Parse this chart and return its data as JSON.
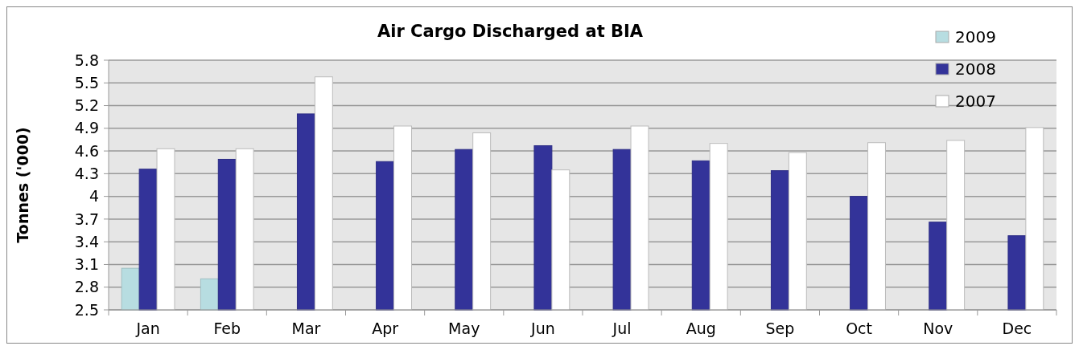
{
  "chart_data": {
    "type": "bar",
    "title": "Air Cargo Discharged at BIA",
    "ylabel": "Tonnes ('000)",
    "categories": [
      "Jan",
      "Feb",
      "Mar",
      "Apr",
      "May",
      "Jun",
      "Jul",
      "Aug",
      "Sep",
      "Oct",
      "Nov",
      "Dec"
    ],
    "series": [
      {
        "name": "2009",
        "color": "#b7dde1",
        "values": [
          3.05,
          2.91,
          null,
          null,
          null,
          null,
          null,
          null,
          null,
          null,
          null,
          null
        ]
      },
      {
        "name": "2008",
        "color": "#333399",
        "values": [
          4.36,
          4.49,
          5.09,
          4.46,
          4.62,
          4.67,
          4.62,
          4.47,
          4.34,
          4.0,
          3.66,
          3.48
        ]
      },
      {
        "name": "2007",
        "color": "#ffffff",
        "values": [
          4.63,
          4.63,
          5.58,
          4.93,
          4.84,
          4.35,
          4.93,
          4.7,
          4.58,
          4.71,
          4.74,
          4.91
        ]
      }
    ],
    "ylim": [
      2.5,
      5.8
    ],
    "yticks": [
      2.5,
      2.8,
      3.1,
      3.4,
      3.7,
      4,
      4.3,
      4.6,
      4.9,
      5.2,
      5.5,
      5.8
    ],
    "grid": "y",
    "legend": "top right"
  }
}
